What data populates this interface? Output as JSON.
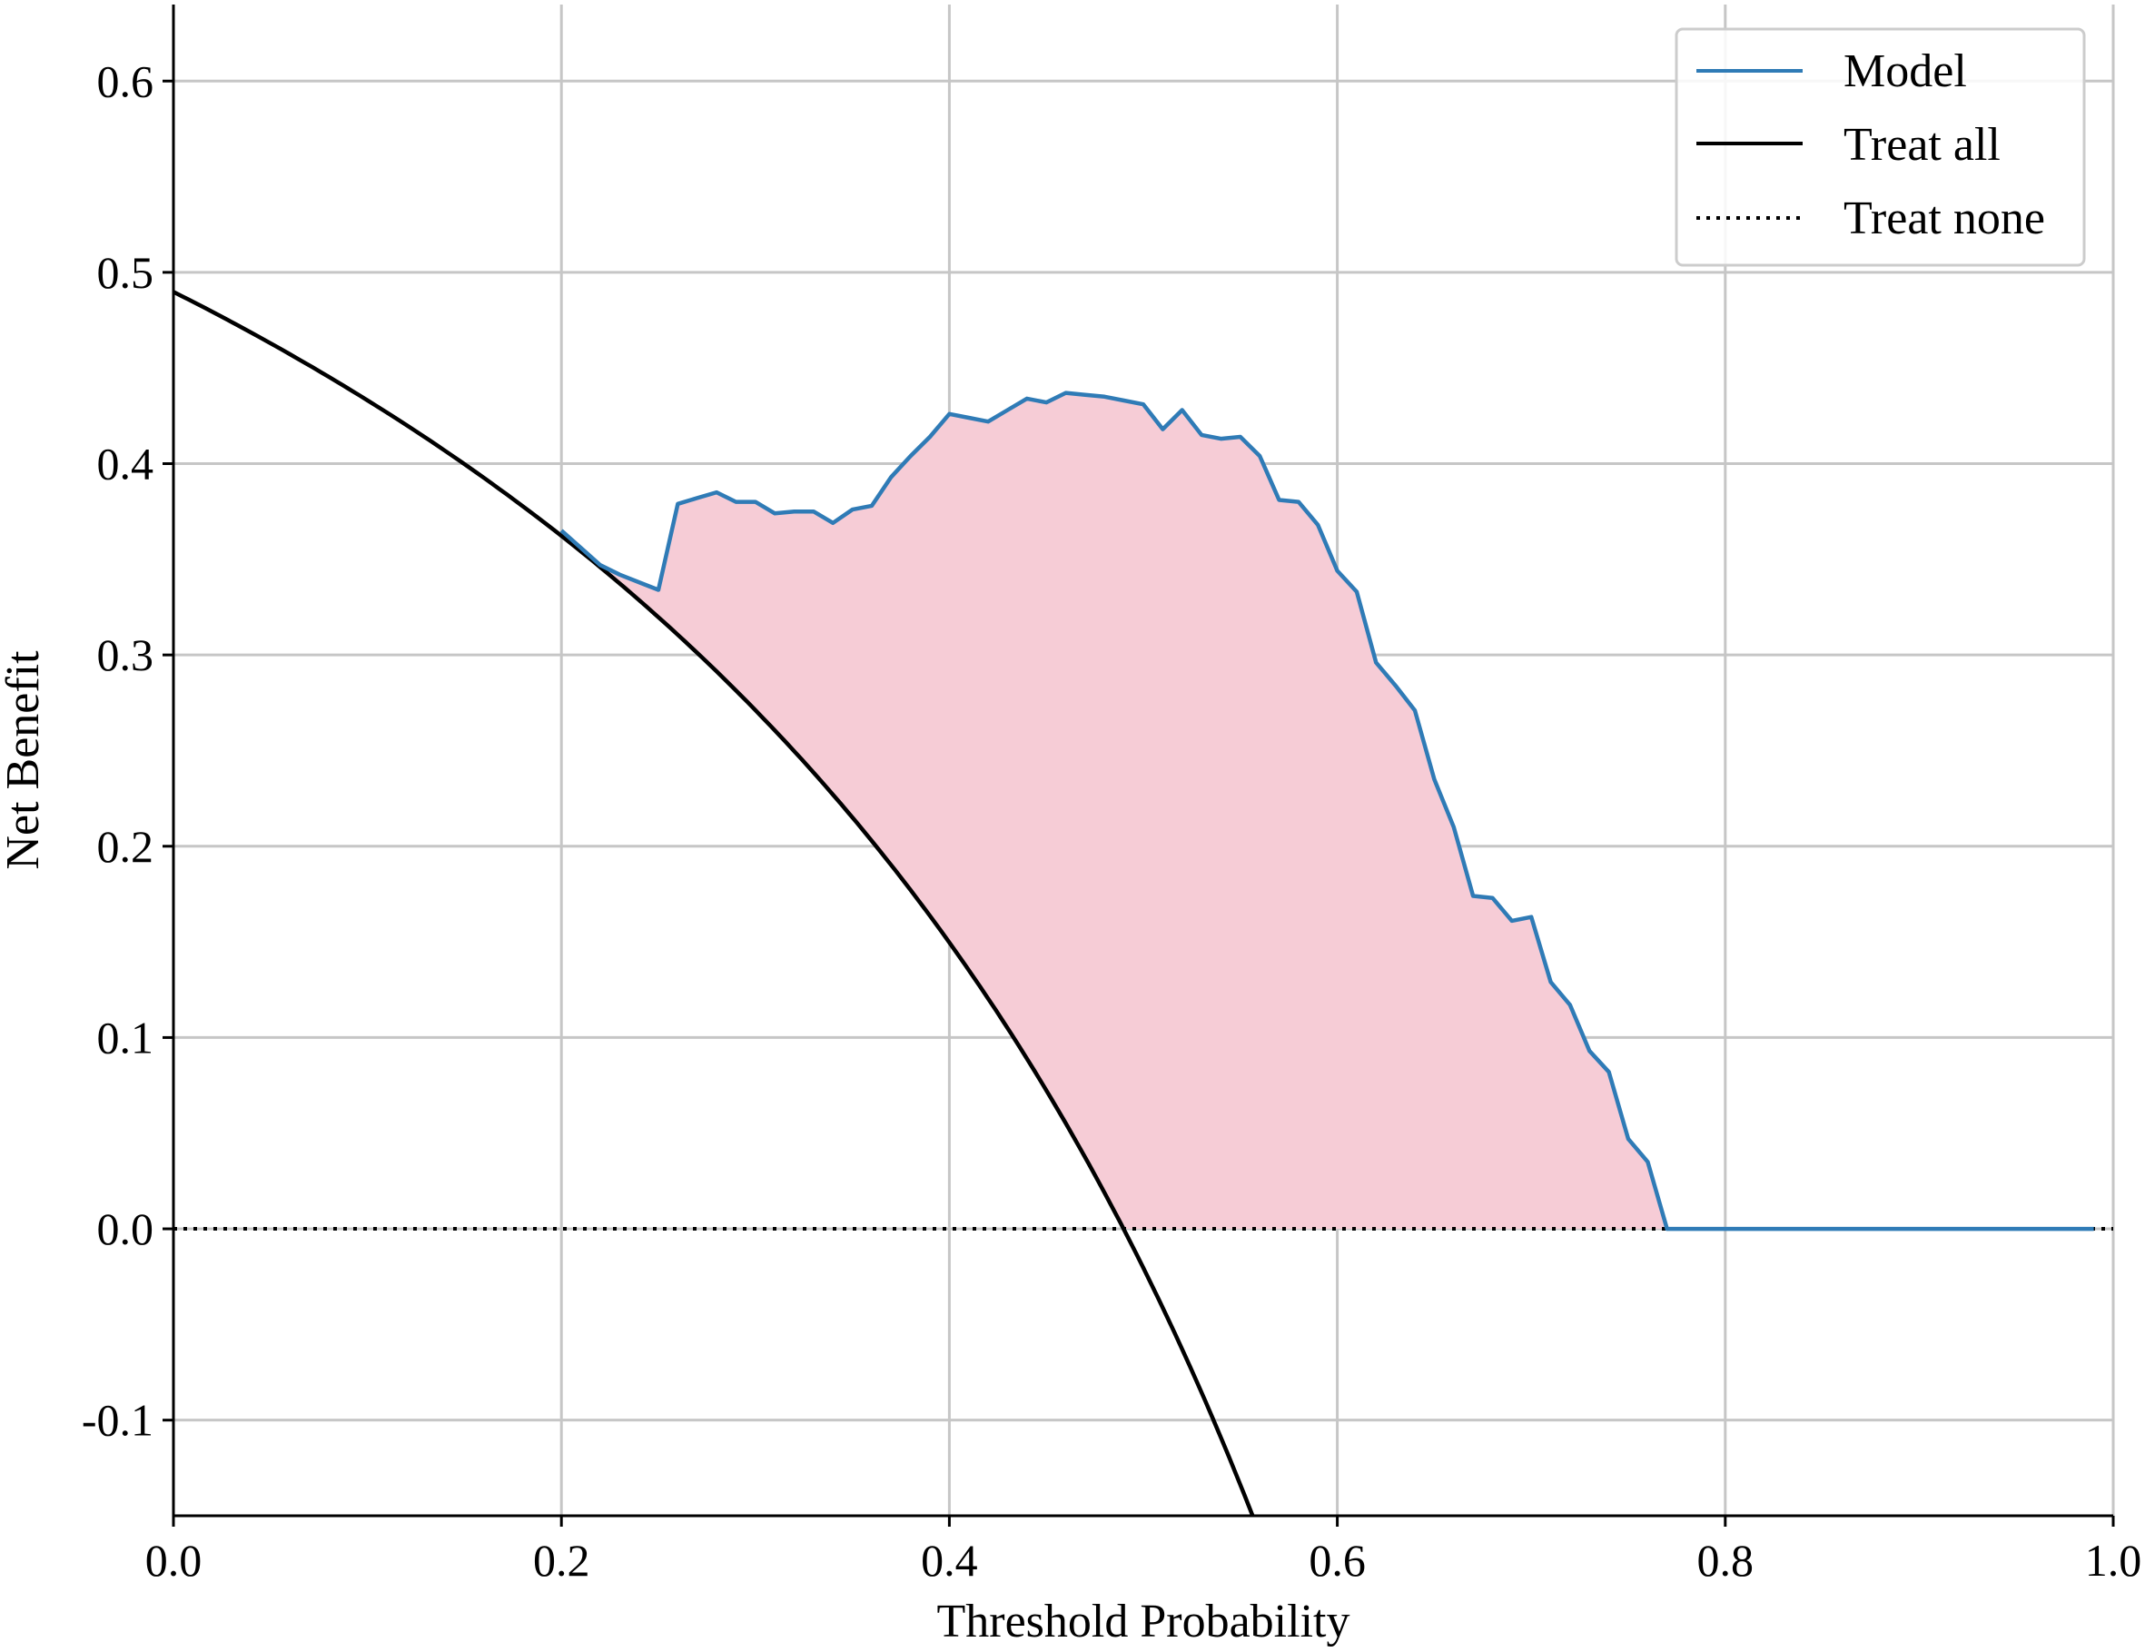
{
  "chart_data": {
    "type": "line",
    "title": "",
    "xlabel": "Threshold Probability",
    "ylabel": "Net Benefit",
    "xlim": [
      0.0,
      1.0
    ],
    "ylim": [
      -0.15,
      0.64
    ],
    "xticks": [
      0.0,
      0.2,
      0.4,
      0.6,
      0.8,
      1.0
    ],
    "xtick_labels": [
      "0.0",
      "0.2",
      "0.4",
      "0.6",
      "0.8",
      "1.0"
    ],
    "yticks": [
      -0.1,
      0.0,
      0.1,
      0.2,
      0.3,
      0.4,
      0.5,
      0.6
    ],
    "ytick_labels": [
      "-0.1",
      "0.0",
      "0.1",
      "0.2",
      "0.3",
      "0.4",
      "0.5",
      "0.6"
    ],
    "grid": true,
    "legend_position": "top-right",
    "fill_between": {
      "series": [
        "Model",
        "Treat all"
      ],
      "color": "#f6ccd6",
      "description_source": "shaded area where Model exceeds Treat all"
    },
    "series": [
      {
        "name": "Model",
        "color": "#2f7bb6",
        "style": "solid",
        "x": [
          0.2,
          0.21,
          0.22,
          0.23,
          0.24,
          0.25,
          0.26,
          0.27,
          0.28,
          0.29,
          0.3,
          0.31,
          0.32,
          0.33,
          0.34,
          0.35,
          0.36,
          0.37,
          0.38,
          0.39,
          0.4,
          0.41,
          0.42,
          0.43,
          0.44,
          0.45,
          0.46,
          0.47,
          0.48,
          0.49,
          0.5,
          0.51,
          0.52,
          0.53,
          0.54,
          0.55,
          0.56,
          0.57,
          0.58,
          0.59,
          0.6,
          0.61,
          0.62,
          0.63,
          0.64,
          0.65,
          0.66,
          0.67,
          0.68,
          0.69,
          0.7,
          0.71,
          0.72,
          0.73,
          0.74,
          0.75,
          0.76,
          0.77,
          0.78,
          0.79,
          0.8,
          0.85,
          0.9,
          0.95,
          0.99
        ],
        "y": [
          0.365,
          0.356,
          0.347,
          0.342,
          0.338,
          0.334,
          0.379,
          0.382,
          0.385,
          0.38,
          0.38,
          0.374,
          0.375,
          0.375,
          0.369,
          0.376,
          0.378,
          0.393,
          0.404,
          0.414,
          0.426,
          0.424,
          0.422,
          0.428,
          0.434,
          0.432,
          0.437,
          0.436,
          0.435,
          0.433,
          0.431,
          0.418,
          0.428,
          0.415,
          0.413,
          0.414,
          0.404,
          0.381,
          0.38,
          0.368,
          0.344,
          0.333,
          0.296,
          0.284,
          0.271,
          0.235,
          0.21,
          0.174,
          0.173,
          0.161,
          0.163,
          0.129,
          0.117,
          0.093,
          0.082,
          0.047,
          0.035,
          0.0,
          0.0,
          0.0,
          0.0,
          0.0,
          0.0,
          0.0,
          0.0
        ]
      },
      {
        "name": "Treat all",
        "color": "#000000",
        "style": "solid",
        "prevalence": 0.4898
      },
      {
        "name": "Treat none",
        "color": "#000000",
        "style": "dotted",
        "x": [
          0.0,
          1.0
        ],
        "y": [
          0.0,
          0.0
        ]
      }
    ]
  }
}
